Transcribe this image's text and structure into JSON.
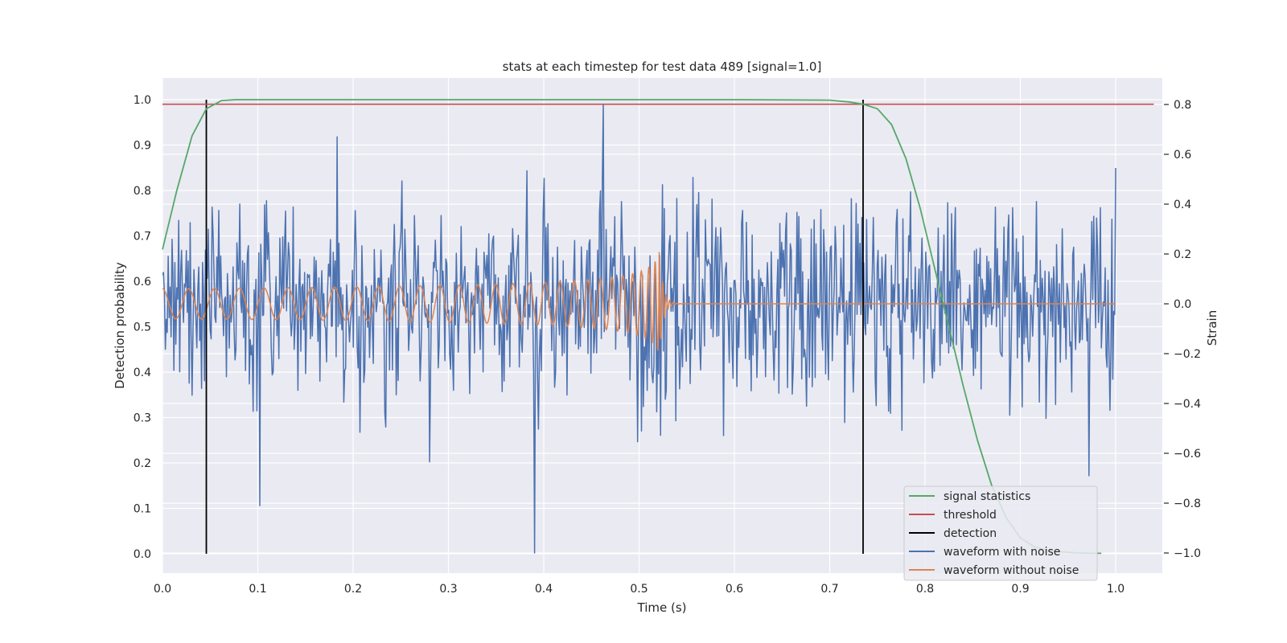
{
  "chart_data": {
    "type": "line",
    "title": "stats at each timestep for test data 489 [signal=1.0]",
    "xlabel": "Time (s)",
    "ylabel": "Detection probability",
    "y2label": "Strain",
    "xlim": [
      0.0,
      1.05
    ],
    "ylim": [
      -0.045,
      1.045
    ],
    "y2lim": [
      -1.085,
      0.905
    ],
    "xticks": [
      0.0,
      0.1,
      0.2,
      0.3,
      0.4,
      0.5,
      0.6,
      0.7,
      0.8,
      0.9,
      1.0
    ],
    "xtick_labels": [
      "0.0",
      "0.1",
      "0.2",
      "0.3",
      "0.4",
      "0.5",
      "0.6",
      "0.7",
      "0.8",
      "0.9",
      "1.0"
    ],
    "yticks": [
      0.0,
      0.1,
      0.2,
      0.3,
      0.4,
      0.5,
      0.6,
      0.7,
      0.8,
      0.9,
      1.0
    ],
    "ytick_labels": [
      "0.0",
      "0.1",
      "0.2",
      "0.3",
      "0.4",
      "0.5",
      "0.6",
      "0.7",
      "0.8",
      "0.9",
      "1.0"
    ],
    "y2ticks": [
      -1.0,
      -0.8,
      -0.6,
      -0.4,
      -0.2,
      0.0,
      0.2,
      0.4,
      0.6,
      0.8
    ],
    "y2tick_labels": [
      "−1.0",
      "−0.8",
      "−0.6",
      "−0.4",
      "−0.2",
      "0.0",
      "0.2",
      "0.4",
      "0.6",
      "0.8"
    ],
    "grid": true,
    "legend_position": "lower-right",
    "series": [
      {
        "name": "signal statistics",
        "axis": "left",
        "color": "#55a868",
        "x": [
          0.0,
          0.015,
          0.031,
          0.046,
          0.062,
          0.077,
          0.093,
          0.2,
          0.4,
          0.6,
          0.7,
          0.72,
          0.735,
          0.75,
          0.765,
          0.78,
          0.795,
          0.81,
          0.825,
          0.84,
          0.855,
          0.87,
          0.885,
          0.9,
          0.915,
          0.93,
          0.945,
          0.96,
          0.975,
          0.985
        ],
        "y": [
          0.67,
          0.8,
          0.92,
          0.98,
          0.998,
          1.0,
          1.0,
          1.0,
          1.0,
          1.0,
          0.999,
          0.995,
          0.99,
          0.98,
          0.945,
          0.87,
          0.76,
          0.63,
          0.5,
          0.37,
          0.25,
          0.15,
          0.08,
          0.035,
          0.015,
          0.007,
          0.004,
          0.002,
          0.001,
          0.001
        ]
      },
      {
        "name": "threshold",
        "axis": "left",
        "color": "#c44e52",
        "x": [
          0.0,
          1.04
        ],
        "y": [
          0.99,
          0.99
        ]
      },
      {
        "name": "detection",
        "axis": "left",
        "color": "#000000",
        "x_positions": [
          0.046,
          0.735
        ],
        "y_range": [
          0.0,
          1.0
        ]
      },
      {
        "name": "waveform with noise",
        "axis": "right",
        "color": "#4c72b0",
        "x_range": [
          0.0,
          1.0
        ],
        "points": 1000,
        "approx_std": 0.2,
        "notable_peaks": [
          [
            0.462,
            0.8
          ],
          [
            0.39,
            -1.0
          ],
          [
            0.102,
            -0.81
          ],
          [
            0.972,
            -0.69
          ],
          [
            0.183,
            0.67
          ]
        ]
      },
      {
        "name": "waveform without noise",
        "axis": "right",
        "color": "#dd8452",
        "x_range": [
          0.0,
          1.0
        ],
        "merger_time": 0.521,
        "start_amplitude": 0.06,
        "peak_amplitude": 0.22,
        "start_frequency_hz": 36
      }
    ]
  },
  "legend": {
    "items": [
      {
        "label": "signal statistics",
        "color": "#55a868"
      },
      {
        "label": "threshold",
        "color": "#c44e52"
      },
      {
        "label": "detection",
        "color": "#000000"
      },
      {
        "label": "waveform with noise",
        "color": "#4c72b0"
      },
      {
        "label": "waveform without noise",
        "color": "#dd8452"
      }
    ]
  },
  "colors": {
    "plot_background": "#eaeaf2",
    "grid": "#ffffff",
    "text": "#262626"
  }
}
